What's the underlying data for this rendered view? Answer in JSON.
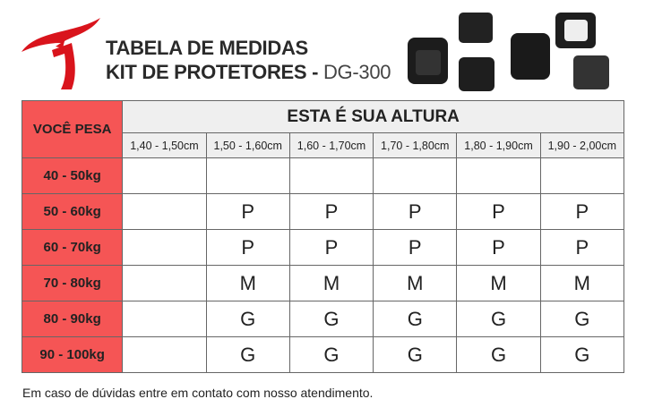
{
  "title": {
    "line1": "TABELA DE MEDIDAS",
    "line2": "KIT DE PROTETORES - ",
    "model": "DG-300"
  },
  "colors": {
    "brand": "#d9141c",
    "weight_column": "#f55555",
    "empty_cell": "#efefef"
  },
  "table": {
    "weight_header": "VOCÊ PESA",
    "height_header": "ESTA É SUA ALTURA",
    "heights": [
      "1,40 - 1,50cm",
      "1,50 - 1,60cm",
      "1,60 - 1,70cm",
      "1,70 - 1,80cm",
      "1,80 - 1,90cm",
      "1,90 - 2,00cm"
    ],
    "rows": [
      {
        "weight": "40 - 50kg",
        "sizes": [
          "",
          "",
          "",
          "",
          "",
          ""
        ]
      },
      {
        "weight": "50 - 60kg",
        "sizes": [
          "",
          "P",
          "P",
          "P",
          "P",
          "P"
        ]
      },
      {
        "weight": "60 - 70kg",
        "sizes": [
          "",
          "P",
          "P",
          "P",
          "P",
          "P"
        ]
      },
      {
        "weight": "70 - 80kg",
        "sizes": [
          "",
          "M",
          "M",
          "M",
          "M",
          "M"
        ]
      },
      {
        "weight": "80 - 90kg",
        "sizes": [
          "",
          "G",
          "G",
          "G",
          "G",
          "G"
        ]
      },
      {
        "weight": "90 - 100kg",
        "sizes": [
          "",
          "G",
          "G",
          "G",
          "G",
          "G"
        ]
      }
    ]
  },
  "footer": "Em caso  de dúvidas entre em contato com nosso atendimento."
}
